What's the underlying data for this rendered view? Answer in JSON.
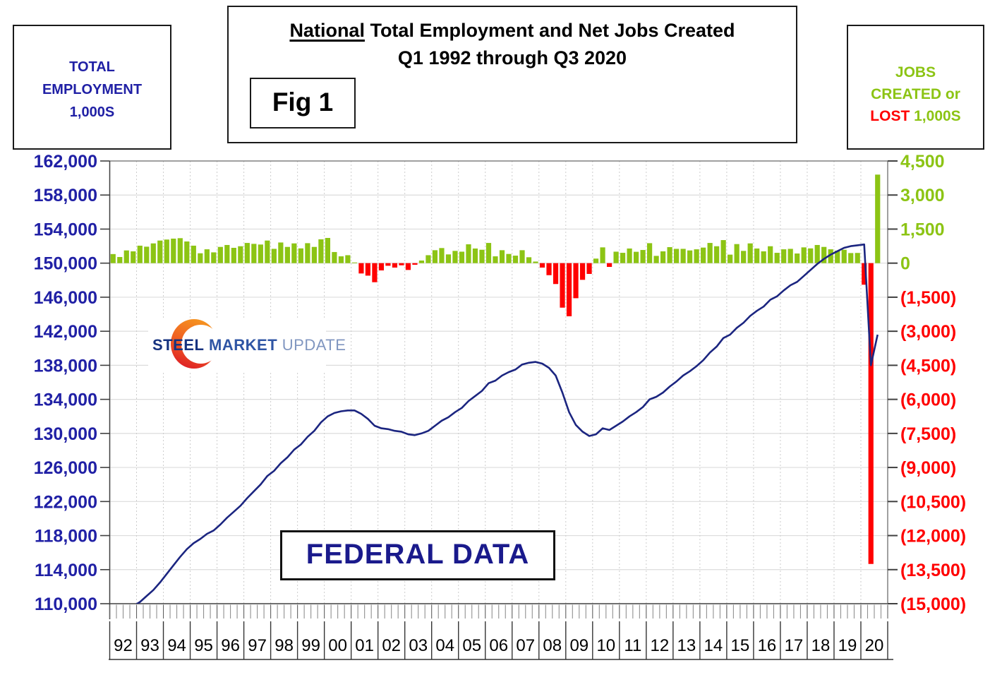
{
  "legend_left_box": {
    "line1": "TOTAL",
    "line2": "EMPLOYMENT",
    "line3": "1,000S"
  },
  "title_box": {
    "title_emphasis": "National",
    "title_rest": " Total Employment and Net Jobs Created",
    "subtitle": "Q1 1992 through Q3 2020",
    "fig_label": "Fig 1"
  },
  "legend_right_box": {
    "line1": "JOBS",
    "line2": "CREATED or",
    "lost_word": "LOST",
    "unit_word": " 1,000S"
  },
  "watermark": {
    "word1": "STEEL",
    "word2": "MARKET",
    "word3": "UPDATE"
  },
  "annotation": {
    "label": "FEDERAL DATA"
  },
  "colors": {
    "bar_positive": "#8CC414",
    "bar_negative": "#FF0000",
    "line": "#1B2580",
    "left_axis_text": "#2020A5",
    "right_axis_positive_text": "#8CC414",
    "right_axis_negative_text": "#FF0000",
    "grid": "#DCDCDC",
    "grid_dashed": "#CCCCCC",
    "frame": "#555555",
    "year_label_text": "#000000"
  },
  "chart_data": {
    "type": "combo(line+bar)",
    "title": "National Total Employment and Net Jobs Created",
    "subtitle": "Q1 1992 through Q3 2020",
    "period": {
      "start": "1992 Q1",
      "end": "2020 Q3",
      "frequency": "quarterly"
    },
    "left_axis": {
      "title": "TOTAL EMPLOYMENT 1,000S",
      "max": 162000,
      "min": 110000,
      "step": 4000,
      "tick_labels": [
        "162,000",
        "158,000",
        "154,000",
        "150,000",
        "146,000",
        "142,000",
        "138,000",
        "134,000",
        "130,000",
        "126,000",
        "122,000",
        "118,000",
        "114,000",
        "110,000"
      ]
    },
    "right_axis": {
      "title": "JOBS CREATED or LOST 1,000S",
      "max": 4500,
      "min": -15000,
      "step": 1500,
      "tick_labels": [
        "4,500",
        "3,000",
        "1,500",
        "0",
        "(1,500)",
        "(3,000)",
        "(4,500)",
        "(6,000)",
        "(7,500)",
        "(9,000)",
        "(10,500)",
        "(12,000)",
        "(13,500)",
        "(15,000)"
      ]
    },
    "x_axis": {
      "year_labels": [
        "92",
        "93",
        "94",
        "95",
        "96",
        "97",
        "98",
        "99",
        "00",
        "01",
        "02",
        "03",
        "04",
        "05",
        "06",
        "07",
        "08",
        "09",
        "10",
        "11",
        "12",
        "13",
        "14",
        "15",
        "16",
        "17",
        "18",
        "19",
        "20"
      ],
      "quarters_per_year": 4,
      "last_year_quarters": 3
    },
    "grid": {
      "horizontal": true,
      "vertical_yearly_dashed": true
    },
    "series": [
      {
        "name": "Total Employment (1,000s)",
        "type": "line",
        "axis": "left",
        "values": [
          108400,
          108700,
          109200,
          109700,
          110200,
          110900,
          111600,
          112500,
          113500,
          114500,
          115500,
          116400,
          117100,
          117600,
          118200,
          118600,
          119300,
          120100,
          120800,
          121500,
          122400,
          123200,
          124000,
          125000,
          125600,
          126500,
          127200,
          128100,
          128700,
          129600,
          130300,
          131300,
          132000,
          132400,
          132600,
          132700,
          132700,
          132300,
          131700,
          130900,
          130600,
          130500,
          130300,
          130200,
          129900,
          129800,
          130000,
          130300,
          130900,
          131500,
          131900,
          132500,
          133000,
          133800,
          134400,
          135000,
          135900,
          136200,
          136800,
          137200,
          137500,
          138100,
          138300,
          138400,
          138200,
          137700,
          136800,
          134800,
          132500,
          131000,
          130200,
          129700,
          129900,
          130600,
          130400,
          130900,
          131400,
          132000,
          132500,
          133100,
          134000,
          134300,
          134800,
          135500,
          136100,
          136800,
          137300,
          137900,
          138600,
          139500,
          140200,
          141200,
          141600,
          142400,
          143000,
          143800,
          144400,
          144900,
          145700,
          146100,
          146800,
          147400,
          147800,
          148500,
          149200,
          149900,
          150500,
          151000,
          151400,
          151800,
          152000,
          152100,
          152200,
          138000,
          141600
        ]
      },
      {
        "name": "Net Jobs Created or Lost (1,000s)",
        "type": "bar",
        "axis": "right",
        "values": [
          400,
          270,
          560,
          520,
          770,
          725,
          870,
          995,
          1040,
          1080,
          1100,
          955,
          770,
          435,
          610,
          475,
          715,
          800,
          675,
          745,
          890,
          850,
          820,
          995,
          630,
          910,
          715,
          870,
          650,
          880,
          715,
          1050,
          1110,
          490,
          300,
          350,
          30,
          -455,
          -550,
          -840,
          -320,
          -115,
          -195,
          -95,
          -300,
          -70,
          115,
          350,
          570,
          665,
          385,
          540,
          505,
          830,
          645,
          590,
          890,
          300,
          570,
          405,
          330,
          570,
          260,
          70,
          -195,
          -530,
          -920,
          -1960,
          -2340,
          -1545,
          -735,
          -475,
          200,
          695,
          -165,
          505,
          455,
          645,
          500,
          580,
          880,
          320,
          520,
          705,
          630,
          630,
          560,
          610,
          685,
          890,
          745,
          1015,
          375,
          840,
          540,
          870,
          645,
          520,
          745,
          455,
          610,
          630,
          425,
          695,
          650,
          800,
          715,
          610,
          550,
          590,
          445,
          450,
          -950,
          -13250,
          3900
        ]
      }
    ]
  }
}
